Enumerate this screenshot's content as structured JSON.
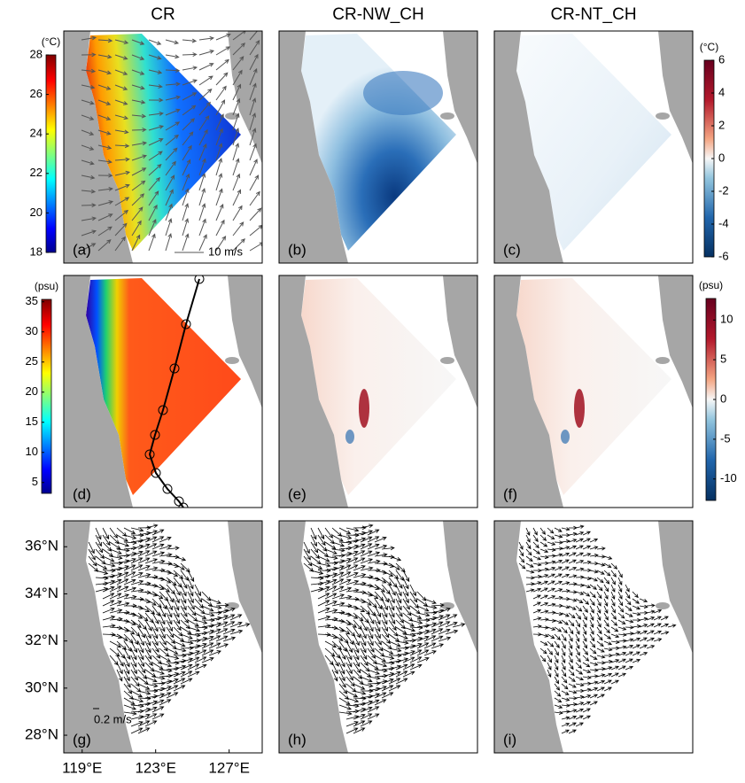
{
  "columns": [
    "CR",
    "CR-NW_CH",
    "CR-NT_CH"
  ],
  "panels": [
    "(a)",
    "(b)",
    "(c)",
    "(d)",
    "(e)",
    "(f)",
    "(g)",
    "(h)",
    "(i)"
  ],
  "colorbars": [
    {
      "unit": "(°C)",
      "lim": [
        18,
        28
      ],
      "ticks": [
        18,
        20,
        22,
        24,
        26,
        28
      ]
    },
    {
      "unit": "(°C)",
      "lim": [
        -6,
        6
      ],
      "ticks": [
        -6,
        -4,
        -2,
        0,
        2,
        4,
        6
      ]
    },
    {
      "unit": "(psu)",
      "lim": [
        3.2,
        35.4
      ],
      "ticks": [
        5,
        10,
        15,
        20,
        25,
        30,
        35
      ]
    },
    {
      "unit": "(psu)",
      "lim": [
        -12.7,
        12.7
      ],
      "ticks": [
        -10,
        -5,
        0,
        5,
        10
      ]
    }
  ],
  "scales": [
    "10 m/s",
    "0.2 m/s"
  ],
  "lonlim": [
    118,
    128.8
  ],
  "latlim": [
    27.25,
    37.1
  ],
  "lon_ticks": [
    {
      "value": 119,
      "label": "119°E"
    },
    {
      "value": 123,
      "label": "123°E"
    },
    {
      "value": 127,
      "label": "127°E"
    }
  ],
  "lat_ticks": [
    {
      "value": 28,
      "label": "28°N"
    },
    {
      "value": 30,
      "label": "30°N"
    },
    {
      "value": 32,
      "label": "32°N"
    },
    {
      "value": 34,
      "label": "34°N"
    },
    {
      "value": 36,
      "label": "36°N"
    }
  ]
}
